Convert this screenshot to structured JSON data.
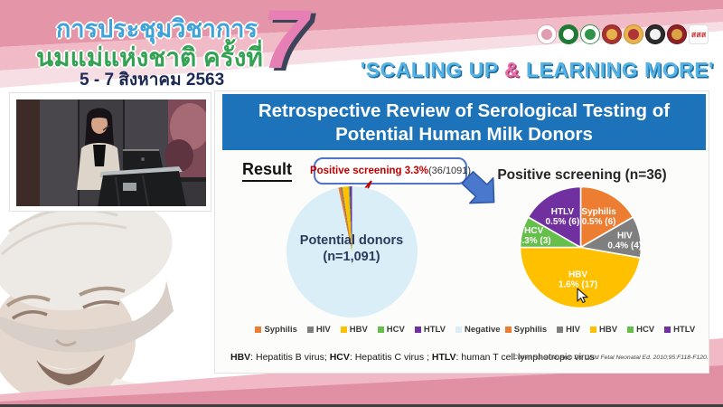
{
  "banner": {
    "conference_title_line1": "การประชุมวิชาการ",
    "conference_title_line2": "นมแม่แห่งชาติ ครั้งที่",
    "edition_number": "7",
    "date_range": "5 - 7 สิงหาคม 2563",
    "tagline_part1": "'SCALING UP ",
    "tagline_amp": "&",
    "tagline_part2": " LEARNING MORE'",
    "logos": [
      {
        "name": "breastfeeding-foundation-logo",
        "outer": "#ffffff",
        "inner": "#e09cb0",
        "border": "#d8a7b4"
      },
      {
        "name": "ministry-of-public-health-logo",
        "outer": "#1e7a34",
        "inner": "#ffffff",
        "border": "#1e7a34"
      },
      {
        "name": "department-of-health-logo",
        "outer": "#ffffff",
        "inner": "#2f9447",
        "border": "#2f9447"
      },
      {
        "name": "university-crest-logo",
        "outer": "#a8332f",
        "inner": "#e7b34c",
        "border": "#8a2724"
      },
      {
        "name": "royal-award-emblem-logo",
        "outer": "#e7b34c",
        "inner": "#b03339",
        "border": "#c8922f"
      },
      {
        "name": "professional-council-seal-logo",
        "outer": "#2d2d2d",
        "inner": "#f2f2f2",
        "border": "#111111"
      },
      {
        "name": "red-crest-logo",
        "outer": "#8e2027",
        "inner": "#d9a441",
        "border": "#6e1218"
      },
      {
        "name": "thai-health-promotion-logo",
        "text": "สสส",
        "color": "#d63031",
        "outer": "#ffffff",
        "border": "#e0e0e0"
      }
    ]
  },
  "slide": {
    "title_line1": "Retrospective Review of Serological Testing of",
    "title_line2": "Potential Human Milk Donors",
    "result_label": "Result",
    "callout_highlight": "Positive screening 3.3%",
    "callout_detail": " (36/1091)",
    "footnote_segments": [
      {
        "text": "HBV",
        "bold": true
      },
      {
        "text": ": Hepatitis B virus; ",
        "bold": false
      },
      {
        "text": "HCV",
        "bold": true
      },
      {
        "text": ": Hepatitis C virus ; ",
        "bold": false
      },
      {
        "text": "HTLV",
        "bold": true
      },
      {
        "text": ": human T cell lymphotropic virus",
        "bold": false
      }
    ],
    "citation": "Cohen RS, et al. Arch Dis Child Fetal Neonatal Ed. 2010;95:F118-F120."
  },
  "chart_data": [
    {
      "type": "pie",
      "name": "potential-donors-pie",
      "title": "",
      "center_label": [
        "Potential donors",
        "(n=1,091)"
      ],
      "annotation": "Positive screening 3.3% (36/1091)",
      "categories": [
        "Syphilis",
        "HIV",
        "HBV",
        "HCV",
        "HTLV",
        "Negative"
      ],
      "values": [
        6,
        4,
        17,
        3,
        6,
        1055
      ],
      "total": 1091,
      "colors": [
        "#ED7D31",
        "#7F7F7F",
        "#FFC000",
        "#66BF4A",
        "#7030A0",
        "#DAEEF8"
      ],
      "start_angle_deg": -12,
      "legend_position": "bottom"
    },
    {
      "type": "pie",
      "name": "positive-screening-pie",
      "title": "Positive screening (n=36)",
      "categories": [
        "Syphilis",
        "HIV",
        "HBV",
        "HCV",
        "HTLV"
      ],
      "values": [
        6,
        4,
        17,
        3,
        6
      ],
      "total": 36,
      "percent_labels": [
        "0.5% (6)",
        "0.4% (4)",
        "1.6% (17)",
        "0.3% (3)",
        "0.5% (6)"
      ],
      "colors": [
        "#ED7D31",
        "#7F7F7F",
        "#FFC000",
        "#66BF4A",
        "#7030A0"
      ],
      "start_angle_deg": 0,
      "label_radius": [
        0.6,
        0.74,
        0.52,
        0.8,
        0.6
      ],
      "legend_position": "bottom"
    }
  ]
}
